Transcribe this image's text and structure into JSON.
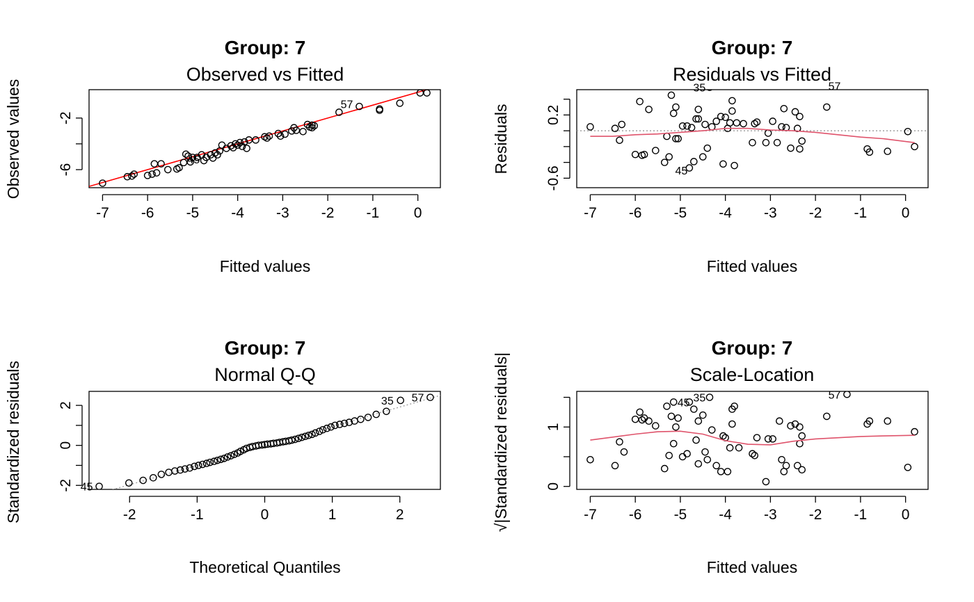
{
  "colors": {
    "points": "#000000",
    "fit_line": "#ff0000",
    "smooth": "#df536b",
    "reference": "#a0a0a0"
  },
  "chart_data": [
    {
      "id": "observed-vs-fitted",
      "type": "scatter",
      "title": "Group: 7",
      "subtitle": "Observed vs Fitted",
      "xlabel": "Fitted values",
      "ylabel": "Observed values",
      "xlim": [
        -7.3,
        0.5
      ],
      "ylim": [
        -7.4,
        0.2
      ],
      "xticks": [
        -7,
        -6,
        -5,
        -4,
        -3,
        -2,
        -1,
        0
      ],
      "yticks": [
        -6,
        -4,
        -2
      ],
      "yticks_labeled": [
        -6,
        -2
      ],
      "reference_line": {
        "style": "solid",
        "color": "red",
        "points": [
          [
            -7.3,
            -7.3
          ],
          [
            0.5,
            0.5
          ]
        ]
      },
      "point_labels": [
        {
          "text": "57",
          "x": -1.3,
          "y": -0.9
        },
        {
          "text": "45",
          "x": -4.7,
          "y": -5.2
        }
      ],
      "points": [
        [
          -7.0,
          -7.05
        ],
        [
          -6.45,
          -6.55
        ],
        [
          -6.35,
          -6.5
        ],
        [
          -6.3,
          -6.35
        ],
        [
          -6.0,
          -6.45
        ],
        [
          -5.9,
          -6.35
        ],
        [
          -5.85,
          -5.55
        ],
        [
          -5.8,
          -6.25
        ],
        [
          -5.7,
          -5.55
        ],
        [
          -5.55,
          -6.0
        ],
        [
          -5.35,
          -5.95
        ],
        [
          -5.3,
          -5.85
        ],
        [
          -5.2,
          -5.45
        ],
        [
          -5.15,
          -4.8
        ],
        [
          -5.1,
          -4.95
        ],
        [
          -5.05,
          -5.4
        ],
        [
          -5.0,
          -5.05
        ],
        [
          -4.9,
          -5.05
        ],
        [
          -4.8,
          -4.85
        ],
        [
          -4.75,
          -5.3
        ],
        [
          -4.7,
          -5.05
        ],
        [
          -4.6,
          -4.85
        ],
        [
          -4.55,
          -5.1
        ],
        [
          -4.5,
          -4.7
        ],
        [
          -4.45,
          -4.85
        ],
        [
          -4.4,
          -4.55
        ],
        [
          -4.35,
          -4.1
        ],
        [
          -4.25,
          -4.35
        ],
        [
          -4.15,
          -4.15
        ],
        [
          -4.1,
          -4.3
        ],
        [
          -4.05,
          -4.0
        ],
        [
          -4.0,
          -4.1
        ],
        [
          -3.95,
          -3.9
        ],
        [
          -3.9,
          -4.2
        ],
        [
          -3.85,
          -3.85
        ],
        [
          -3.8,
          -4.35
        ],
        [
          -3.75,
          -3.7
        ],
        [
          -3.6,
          -3.7
        ],
        [
          -3.4,
          -3.45
        ],
        [
          -3.35,
          -3.55
        ],
        [
          -3.3,
          -3.4
        ],
        [
          -3.1,
          -3.2
        ],
        [
          -3.05,
          -3.4
        ],
        [
          -2.95,
          -3.25
        ],
        [
          -2.8,
          -3.0
        ],
        [
          -2.75,
          -2.75
        ],
        [
          -2.7,
          -2.95
        ],
        [
          -2.55,
          -3.05
        ],
        [
          -2.45,
          -2.5
        ],
        [
          -2.4,
          -2.7
        ],
        [
          -2.35,
          -2.55
        ],
        [
          -2.35,
          -2.75
        ],
        [
          -2.3,
          -2.6
        ],
        [
          -1.75,
          -1.55
        ],
        [
          -1.3,
          -1.1
        ],
        [
          -0.85,
          -1.3
        ],
        [
          -0.85,
          -1.4
        ],
        [
          -0.4,
          -0.85
        ],
        [
          0.05,
          -0.05
        ],
        [
          0.2,
          -0.05
        ]
      ]
    },
    {
      "id": "residuals-vs-fitted",
      "type": "scatter",
      "title": "Group: 7",
      "subtitle": "Residuals vs Fitted",
      "xlabel": "Fitted values",
      "ylabel": "Residuals",
      "xlim": [
        -7.3,
        0.5
      ],
      "ylim": [
        -0.72,
        0.52
      ],
      "xticks": [
        -7,
        -6,
        -5,
        -4,
        -3,
        -2,
        -1,
        0
      ],
      "yticks": [
        -0.6,
        -0.4,
        -0.2,
        0.0,
        0.2,
        0.4
      ],
      "yticks_labeled": [
        -0.6,
        0.2
      ],
      "reference_line": {
        "style": "dotted",
        "color": "gray",
        "y": 0.0
      },
      "smooth_line": [
        [
          -7.0,
          -0.07
        ],
        [
          -6.5,
          -0.07
        ],
        [
          -6.0,
          -0.05
        ],
        [
          -5.5,
          -0.04
        ],
        [
          -5.0,
          -0.02
        ],
        [
          -4.5,
          0.0
        ],
        [
          -4.0,
          0.03
        ],
        [
          -3.5,
          0.03
        ],
        [
          -3.0,
          0.01
        ],
        [
          -2.5,
          0.0
        ],
        [
          -2.0,
          -0.02
        ],
        [
          -1.5,
          -0.05
        ],
        [
          -1.0,
          -0.08
        ],
        [
          -0.5,
          -0.1
        ],
        [
          0.2,
          -0.15
        ]
      ],
      "point_labels": [
        {
          "text": "35",
          "x": -4.3,
          "y": 0.55
        },
        {
          "text": "57",
          "x": -1.3,
          "y": 0.57
        },
        {
          "text": "45",
          "x": -4.7,
          "y": -0.5
        }
      ],
      "points": [
        [
          -7.0,
          0.05
        ],
        [
          -6.45,
          0.03
        ],
        [
          -6.35,
          -0.12
        ],
        [
          -6.3,
          0.08
        ],
        [
          -6.0,
          -0.3
        ],
        [
          -5.9,
          0.37
        ],
        [
          -5.85,
          -0.31
        ],
        [
          -5.8,
          -0.3
        ],
        [
          -5.7,
          0.27
        ],
        [
          -5.55,
          -0.25
        ],
        [
          -5.35,
          -0.4
        ],
        [
          -5.3,
          -0.07
        ],
        [
          -5.25,
          -0.33
        ],
        [
          -5.2,
          0.45
        ],
        [
          -5.15,
          0.22
        ],
        [
          -5.1,
          -0.1
        ],
        [
          -5.1,
          0.3
        ],
        [
          -5.05,
          -0.1
        ],
        [
          -4.95,
          0.06
        ],
        [
          -4.85,
          0.06
        ],
        [
          -4.8,
          -0.47
        ],
        [
          -4.75,
          0.04
        ],
        [
          -4.7,
          -0.39
        ],
        [
          -4.65,
          0.15
        ],
        [
          -4.6,
          0.27
        ],
        [
          -4.6,
          0.15
        ],
        [
          -4.5,
          -0.33
        ],
        [
          -4.45,
          0.08
        ],
        [
          -4.4,
          -0.22
        ],
        [
          -4.35,
          0.55
        ],
        [
          -4.3,
          0.05
        ],
        [
          -4.2,
          0.12
        ],
        [
          -4.1,
          0.18
        ],
        [
          -4.05,
          -0.42
        ],
        [
          -4.0,
          0.17
        ],
        [
          -3.95,
          0.03
        ],
        [
          -3.9,
          0.1
        ],
        [
          -3.85,
          0.25
        ],
        [
          -3.85,
          0.38
        ],
        [
          -3.8,
          -0.44
        ],
        [
          -3.75,
          0.1
        ],
        [
          -3.6,
          0.09
        ],
        [
          -3.4,
          -0.15
        ],
        [
          -3.35,
          0.09
        ],
        [
          -3.3,
          0.11
        ],
        [
          -3.1,
          -0.15
        ],
        [
          -3.05,
          -0.03
        ],
        [
          -2.95,
          0.12
        ],
        [
          -2.85,
          -0.15
        ],
        [
          -2.75,
          0.05
        ],
        [
          -2.7,
          0.28
        ],
        [
          -2.65,
          0.04
        ],
        [
          -2.55,
          -0.22
        ],
        [
          -2.45,
          0.24
        ],
        [
          -2.4,
          0.03
        ],
        [
          -2.35,
          0.18
        ],
        [
          -2.35,
          -0.23
        ],
        [
          -2.3,
          -0.13
        ],
        [
          -1.75,
          0.3
        ],
        [
          -1.3,
          0.57
        ],
        [
          -0.85,
          -0.23
        ],
        [
          -0.8,
          -0.27
        ],
        [
          -0.4,
          -0.26
        ],
        [
          0.05,
          -0.01
        ],
        [
          0.2,
          -0.2
        ]
      ]
    },
    {
      "id": "normal-qq",
      "type": "scatter",
      "title": "Group: 7",
      "subtitle": "Normal Q-Q",
      "xlabel": "Theoretical Quantiles",
      "ylabel": "Standardized residuals",
      "xlim": [
        -2.6,
        2.6
      ],
      "ylim": [
        -2.2,
        2.7
      ],
      "xticks": [
        -2,
        -1,
        0,
        1,
        2
      ],
      "yticks": [
        -2,
        -1,
        0,
        1,
        2
      ],
      "yticks_labeled": [
        -2,
        0,
        2
      ],
      "reference_line": {
        "style": "dotted",
        "color": "gray",
        "points": [
          [
            -2.6,
            -2.55
          ],
          [
            2.6,
            2.5
          ]
        ]
      },
      "point_labels": [
        {
          "text": "45",
          "x": -2.45,
          "y": -2.05
        },
        {
          "text": "35",
          "x": 2.0,
          "y": 2.25
        },
        {
          "text": "57",
          "x": 2.45,
          "y": 2.4
        }
      ],
      "points": [
        [
          -2.45,
          -2.05
        ],
        [
          -2.01,
          -1.88
        ],
        [
          -1.8,
          -1.75
        ],
        [
          -1.65,
          -1.62
        ],
        [
          -1.53,
          -1.45
        ],
        [
          -1.42,
          -1.35
        ],
        [
          -1.33,
          -1.28
        ],
        [
          -1.25,
          -1.23
        ],
        [
          -1.18,
          -1.18
        ],
        [
          -1.11,
          -1.13
        ],
        [
          -1.04,
          -1.05
        ],
        [
          -0.98,
          -1.0
        ],
        [
          -0.92,
          -0.95
        ],
        [
          -0.86,
          -0.9
        ],
        [
          -0.81,
          -0.85
        ],
        [
          -0.75,
          -0.8
        ],
        [
          -0.7,
          -0.75
        ],
        [
          -0.65,
          -0.7
        ],
        [
          -0.6,
          -0.65
        ],
        [
          -0.55,
          -0.58
        ],
        [
          -0.5,
          -0.52
        ],
        [
          -0.45,
          -0.45
        ],
        [
          -0.4,
          -0.38
        ],
        [
          -0.36,
          -0.3
        ],
        [
          -0.31,
          -0.22
        ],
        [
          -0.27,
          -0.15
        ],
        [
          -0.22,
          -0.1
        ],
        [
          -0.18,
          -0.06
        ],
        [
          -0.13,
          -0.03
        ],
        [
          -0.09,
          0.0
        ],
        [
          -0.04,
          0.02
        ],
        [
          0.0,
          0.04
        ],
        [
          0.04,
          0.06
        ],
        [
          0.09,
          0.08
        ],
        [
          0.13,
          0.1
        ],
        [
          0.18,
          0.12
        ],
        [
          0.22,
          0.15
        ],
        [
          0.27,
          0.18
        ],
        [
          0.31,
          0.2
        ],
        [
          0.36,
          0.23
        ],
        [
          0.4,
          0.26
        ],
        [
          0.45,
          0.3
        ],
        [
          0.5,
          0.35
        ],
        [
          0.55,
          0.4
        ],
        [
          0.6,
          0.45
        ],
        [
          0.65,
          0.5
        ],
        [
          0.7,
          0.55
        ],
        [
          0.75,
          0.62
        ],
        [
          0.81,
          0.7
        ],
        [
          0.86,
          0.78
        ],
        [
          0.92,
          0.85
        ],
        [
          0.98,
          0.92
        ],
        [
          1.04,
          1.0
        ],
        [
          1.11,
          1.05
        ],
        [
          1.18,
          1.1
        ],
        [
          1.25,
          1.15
        ],
        [
          1.33,
          1.22
        ],
        [
          1.42,
          1.3
        ],
        [
          1.53,
          1.4
        ],
        [
          1.65,
          1.55
        ],
        [
          1.8,
          1.7
        ],
        [
          2.01,
          2.25
        ],
        [
          2.45,
          2.4
        ]
      ]
    },
    {
      "id": "scale-location",
      "type": "scatter",
      "title": "Group: 7",
      "subtitle": "Scale-Location",
      "xlabel": "Fitted values",
      "ylabel": "√|Standardized residuals|",
      "xlim": [
        -7.3,
        0.5
      ],
      "ylim": [
        -0.05,
        1.6
      ],
      "xticks": [
        -7,
        -6,
        -5,
        -4,
        -3,
        -2,
        -1,
        0
      ],
      "yticks": [
        0.0,
        0.5,
        1.0,
        1.5
      ],
      "yticks_labeled": [
        0.0,
        1.0
      ],
      "smooth_line": [
        [
          -7.0,
          0.78
        ],
        [
          -6.5,
          0.83
        ],
        [
          -6.0,
          0.88
        ],
        [
          -5.5,
          0.92
        ],
        [
          -5.0,
          0.93
        ],
        [
          -4.5,
          0.88
        ],
        [
          -4.0,
          0.77
        ],
        [
          -3.5,
          0.71
        ],
        [
          -3.0,
          0.7
        ],
        [
          -2.5,
          0.76
        ],
        [
          -2.0,
          0.8
        ],
        [
          -1.5,
          0.82
        ],
        [
          -1.0,
          0.84
        ],
        [
          -0.5,
          0.85
        ],
        [
          0.2,
          0.86
        ]
      ],
      "point_labels": [
        {
          "text": "45",
          "x": -4.65,
          "y": 1.42
        },
        {
          "text": "35",
          "x": -4.3,
          "y": 1.5
        },
        {
          "text": "57",
          "x": -1.3,
          "y": 1.55
        }
      ],
      "points": [
        [
          -7.0,
          0.45
        ],
        [
          -6.45,
          0.35
        ],
        [
          -6.35,
          0.75
        ],
        [
          -6.25,
          0.58
        ],
        [
          -6.0,
          1.13
        ],
        [
          -5.9,
          1.25
        ],
        [
          -5.85,
          1.12
        ],
        [
          -5.8,
          1.15
        ],
        [
          -5.7,
          1.1
        ],
        [
          -5.55,
          1.02
        ],
        [
          -5.35,
          0.3
        ],
        [
          -5.3,
          1.35
        ],
        [
          -5.25,
          0.52
        ],
        [
          -5.2,
          1.18
        ],
        [
          -5.15,
          0.72
        ],
        [
          -5.15,
          1.42
        ],
        [
          -5.1,
          1.0
        ],
        [
          -5.05,
          1.15
        ],
        [
          -4.95,
          0.5
        ],
        [
          -4.85,
          0.55
        ],
        [
          -4.8,
          1.42
        ],
        [
          -4.7,
          1.3
        ],
        [
          -4.65,
          0.78
        ],
        [
          -4.6,
          1.1
        ],
        [
          -4.6,
          0.38
        ],
        [
          -4.5,
          1.2
        ],
        [
          -4.45,
          0.58
        ],
        [
          -4.4,
          0.45
        ],
        [
          -4.35,
          1.5
        ],
        [
          -4.3,
          0.95
        ],
        [
          -4.2,
          0.35
        ],
        [
          -4.1,
          0.25
        ],
        [
          -4.05,
          0.85
        ],
        [
          -4.0,
          0.82
        ],
        [
          -3.95,
          0.25
        ],
        [
          -3.9,
          0.65
        ],
        [
          -3.85,
          1.05
        ],
        [
          -3.85,
          1.3
        ],
        [
          -3.8,
          1.35
        ],
        [
          -3.7,
          0.65
        ],
        [
          -3.4,
          0.55
        ],
        [
          -3.35,
          0.52
        ],
        [
          -3.3,
          0.82
        ],
        [
          -3.1,
          0.08
        ],
        [
          -3.05,
          0.8
        ],
        [
          -2.95,
          0.8
        ],
        [
          -2.8,
          1.1
        ],
        [
          -2.75,
          0.45
        ],
        [
          -2.7,
          0.25
        ],
        [
          -2.65,
          0.35
        ],
        [
          -2.55,
          1.02
        ],
        [
          -2.45,
          1.05
        ],
        [
          -2.4,
          0.35
        ],
        [
          -2.35,
          0.72
        ],
        [
          -2.35,
          1.0
        ],
        [
          -2.3,
          0.28
        ],
        [
          -2.3,
          0.85
        ],
        [
          -1.75,
          1.18
        ],
        [
          -1.3,
          1.55
        ],
        [
          -0.85,
          1.05
        ],
        [
          -0.8,
          1.1
        ],
        [
          -0.4,
          1.1
        ],
        [
          0.05,
          0.32
        ],
        [
          0.2,
          0.92
        ]
      ]
    }
  ]
}
